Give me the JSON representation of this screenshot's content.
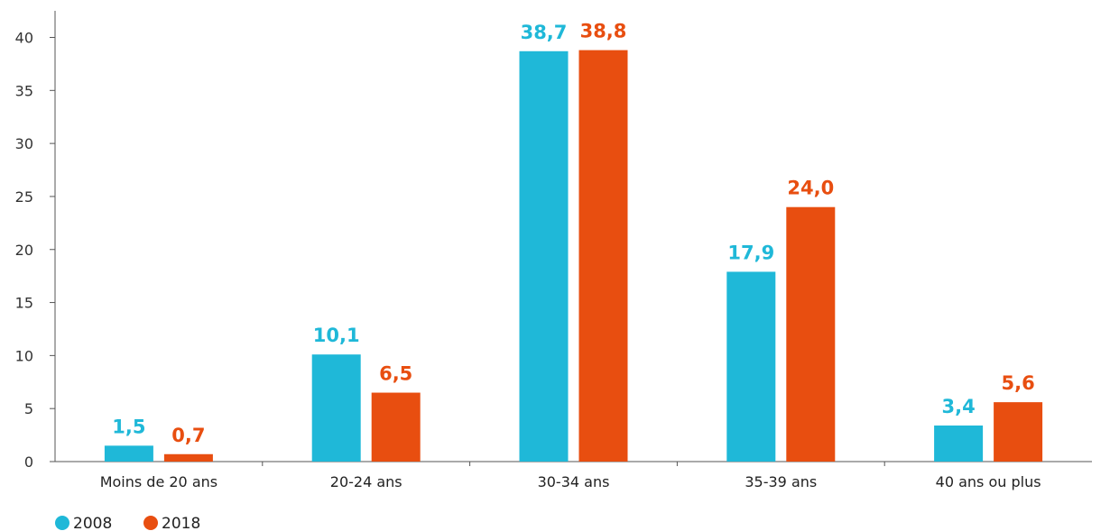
{
  "chart_data": {
    "type": "bar",
    "categories": [
      "Moins de 20 ans",
      "20-24 ans",
      "30-34 ans",
      "35-39 ans",
      "40 ans ou plus"
    ],
    "series": [
      {
        "name": "2008",
        "values": [
          1.5,
          10.1,
          38.7,
          17.9,
          3.4
        ],
        "labels": [
          "1,5",
          "10,1",
          "38,7",
          "17,9",
          "3,4"
        ],
        "color": "#1fb8d8"
      },
      {
        "name": "2018",
        "values": [
          0.7,
          6.5,
          38.8,
          24.0,
          5.6
        ],
        "labels": [
          "0,7",
          "6,5",
          "38,8",
          "24,0",
          "5,6"
        ],
        "color": "#e84e10"
      }
    ],
    "ylim": [
      0,
      40
    ],
    "yticks": [
      0,
      5,
      10,
      15,
      20,
      25,
      30,
      35,
      40
    ],
    "title": "",
    "xlabel": "",
    "ylabel": "",
    "grid": false,
    "legend_position": "bottom-left"
  }
}
